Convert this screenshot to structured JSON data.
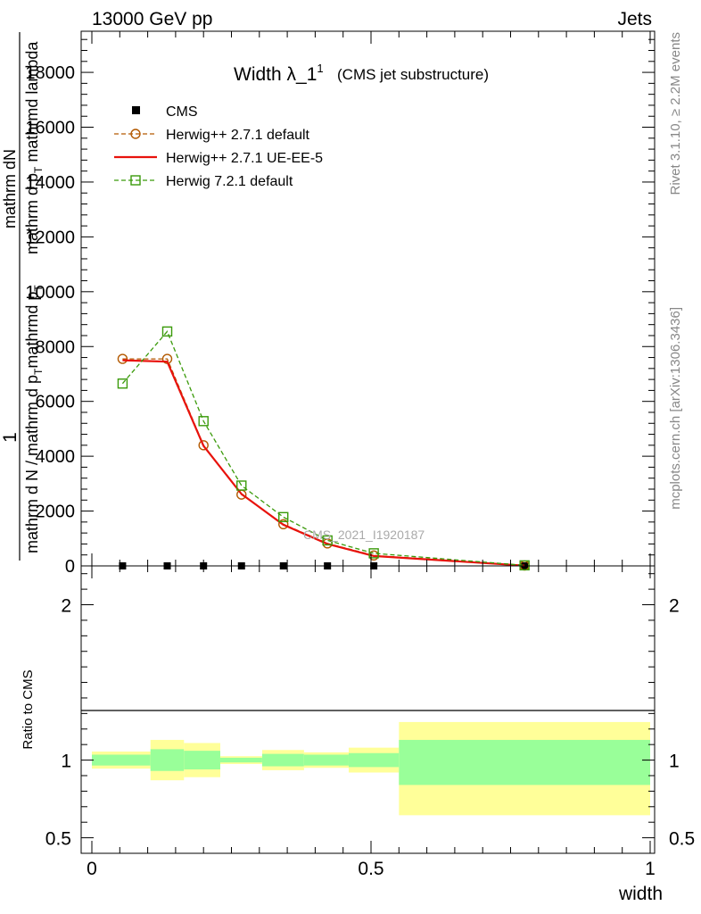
{
  "header": {
    "left": "13000 GeV pp",
    "right": "Jets"
  },
  "side_labels": {
    "right_top": "Rivet 3.1.10, ≥ 2.2M events",
    "right_bottom": "mcplots.cern.ch [arXiv:1306.3436]"
  },
  "chart_data": [
    {
      "type": "line",
      "panel": "main",
      "title_main": "Width λ_1",
      "title_sup": "1",
      "title_paren": "(CMS jet substructure)",
      "watermark": "CMS_2021_I1920187",
      "ylabel_parts": [
        "1",
        "mathrm dN",
        "mathrm d N / mathrm d p_T mathrmd p_T",
        "mathrm d lambda"
      ],
      "ylabel_mid": "mathrm d N / mathrm d p",
      "ylabel_mid_sub": "T",
      "ylabel_mid_tail": "mathrmd p",
      "ylabel_mid_tail_sub": "T",
      "ylabel_num": "mathrm d",
      "ylabel_num_sup": "2",
      "ylabel_num_tail": "N",
      "ylabel_num2": "mathrm d p",
      "ylabel_num2_sub": "T",
      "ylabel_num2_tail": "  mathrmd lambda",
      "ylim": [
        0,
        19500
      ],
      "yticks": [
        0,
        2000,
        4000,
        6000,
        8000,
        10000,
        12000,
        14000,
        16000,
        18000
      ],
      "ytick_labels": [
        "0",
        "2000",
        "4000",
        "6000",
        "8000",
        "10000",
        "12000",
        "14000",
        "16000",
        "18000"
      ],
      "xlim": [
        -0.005,
        1.0
      ],
      "legend": [
        {
          "label": "CMS",
          "style": "data",
          "color": "#000000"
        },
        {
          "label": "Herwig++ 2.7.1 default",
          "style": "dashed-circle",
          "color": "#b35900"
        },
        {
          "label": "Herwig++ 2.7.1 UE-EE-5",
          "style": "solid",
          "color": "#e8120c"
        },
        {
          "label": "Herwig 7.2.1 default",
          "style": "dashed-square",
          "color": "#3a9a0a"
        }
      ],
      "series": [
        {
          "name": "CMS",
          "x": [
            0.055,
            0.135,
            0.2,
            0.268,
            0.343,
            0.422,
            0.505,
            0.775
          ],
          "y": [
            0,
            0,
            0,
            0,
            0,
            0,
            0,
            0
          ]
        },
        {
          "name": "Herwig++ 2.7.1 default",
          "x": [
            0.055,
            0.135,
            0.2,
            0.268,
            0.343,
            0.422,
            0.505,
            0.775
          ],
          "y": [
            7550,
            7550,
            4400,
            2600,
            1520,
            820,
            380,
            15
          ]
        },
        {
          "name": "Herwig++ 2.7.1 UE-EE-5",
          "x": [
            0.055,
            0.135,
            0.2,
            0.268,
            0.343,
            0.422,
            0.505,
            0.775
          ],
          "y": [
            7500,
            7450,
            4380,
            2620,
            1500,
            800,
            360,
            10
          ]
        },
        {
          "name": "Herwig 7.2.1 default",
          "x": [
            0.055,
            0.135,
            0.2,
            0.268,
            0.343,
            0.422,
            0.505,
            0.775
          ],
          "y": [
            6650,
            8550,
            5280,
            2930,
            1780,
            930,
            460,
            20
          ]
        }
      ]
    },
    {
      "type": "area",
      "panel": "ratio",
      "ylabel": "Ratio to CMS",
      "xlabel": "width",
      "ylim": [
        0.4,
        2.25
      ],
      "yticks": [
        0.5,
        1,
        2
      ],
      "ytick_labels": [
        "0.5",
        "1",
        "2"
      ],
      "xticks": [
        0,
        0.5,
        1
      ],
      "xtick_labels": [
        "0",
        "0.5",
        "1"
      ],
      "bins": [
        {
          "lo": 0.0,
          "hi": 0.105,
          "stat_lo": 0.965,
          "stat_hi": 1.035,
          "tot_lo": 0.945,
          "tot_hi": 1.055
        },
        {
          "lo": 0.105,
          "hi": 0.165,
          "stat_lo": 0.93,
          "stat_hi": 1.07,
          "tot_lo": 0.87,
          "tot_hi": 1.13
        },
        {
          "lo": 0.165,
          "hi": 0.23,
          "stat_lo": 0.94,
          "stat_hi": 1.06,
          "tot_lo": 0.89,
          "tot_hi": 1.11
        },
        {
          "lo": 0.23,
          "hi": 0.305,
          "stat_lo": 0.985,
          "stat_hi": 1.015,
          "tot_lo": 0.975,
          "tot_hi": 1.025
        },
        {
          "lo": 0.305,
          "hi": 0.38,
          "stat_lo": 0.96,
          "stat_hi": 1.04,
          "tot_lo": 0.935,
          "tot_hi": 1.065
        },
        {
          "lo": 0.38,
          "hi": 0.46,
          "stat_lo": 0.965,
          "stat_hi": 1.035,
          "tot_lo": 0.95,
          "tot_hi": 1.05
        },
        {
          "lo": 0.46,
          "hi": 0.55,
          "stat_lo": 0.955,
          "stat_hi": 1.045,
          "tot_lo": 0.92,
          "tot_hi": 1.08
        },
        {
          "lo": 0.55,
          "hi": 1.0,
          "stat_lo": 0.84,
          "stat_hi": 1.13,
          "tot_lo": 0.645,
          "tot_hi": 1.245
        }
      ],
      "colors": {
        "stat": "#99ff99",
        "total": "#ffff99"
      }
    }
  ]
}
